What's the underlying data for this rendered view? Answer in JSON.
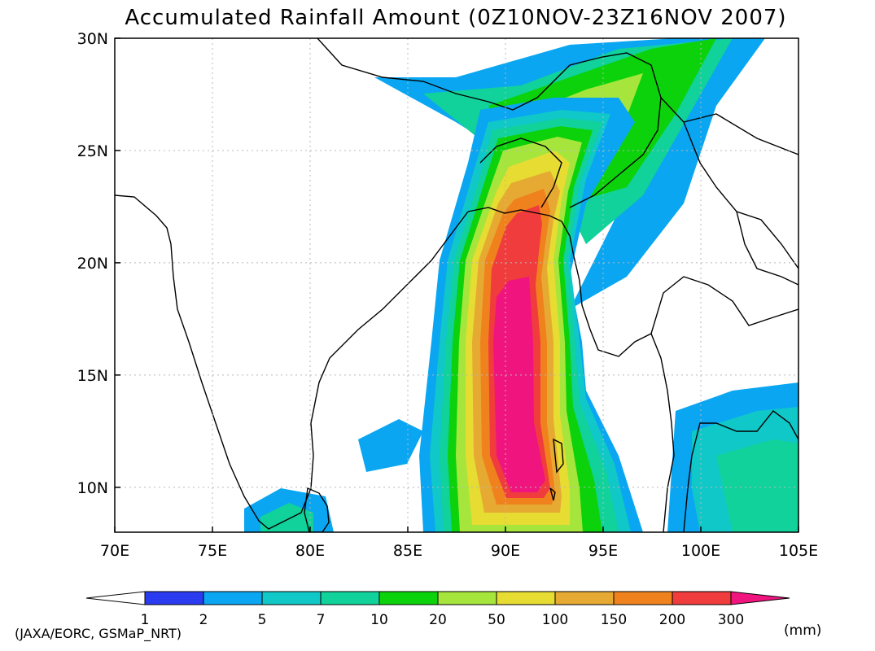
{
  "title": "Accumulated Rainfall Amount (0Z10NOV-23Z16NOV 2007)",
  "map": {
    "lon_range": [
      70,
      105
    ],
    "lat_range": [
      8,
      30
    ],
    "x_ticks": [
      {
        "value": 70,
        "label": "70E"
      },
      {
        "value": 75,
        "label": "75E"
      },
      {
        "value": 80,
        "label": "80E"
      },
      {
        "value": 85,
        "label": "85E"
      },
      {
        "value": 90,
        "label": "90E"
      },
      {
        "value": 95,
        "label": "95E"
      },
      {
        "value": 100,
        "label": "100E"
      },
      {
        "value": 105,
        "label": "105E"
      }
    ],
    "y_ticks": [
      {
        "value": 10,
        "label": "10N"
      },
      {
        "value": 15,
        "label": "15N"
      },
      {
        "value": 20,
        "label": "20N"
      },
      {
        "value": 25,
        "label": "25N"
      },
      {
        "value": 30,
        "label": "30N"
      }
    ],
    "grid": true
  },
  "colorbar": {
    "labels": [
      "1",
      "2",
      "5",
      "7",
      "10",
      "20",
      "50",
      "100",
      "150",
      "200",
      "300"
    ],
    "colors": [
      "#ffffff",
      "#2a3bf0",
      "#0aa6f2",
      "#10c8c8",
      "#10d29a",
      "#0cd20c",
      "#a6e63c",
      "#e6dc32",
      "#e6aa32",
      "#f0821e",
      "#f03c3c",
      "#f0147f"
    ],
    "unit": "(mm)"
  },
  "credit": "(JAXA/EORC, GSMaP_NRT)"
}
